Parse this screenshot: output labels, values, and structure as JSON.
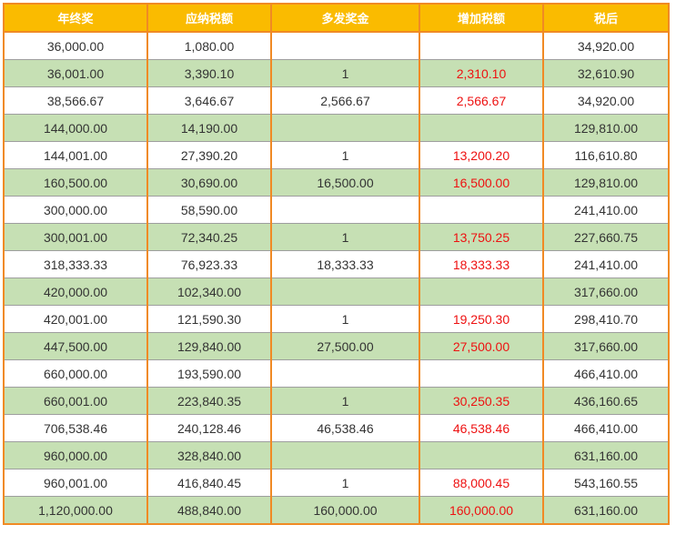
{
  "table": {
    "headers": [
      "年终奖",
      "应纳税额",
      "多发奖金",
      "增加税额",
      "税后"
    ],
    "rows": [
      [
        "36,000.00",
        "1,080.00",
        "",
        "",
        "34,920.00"
      ],
      [
        "36,001.00",
        "3,390.10",
        "1",
        "2,310.10",
        "32,610.90"
      ],
      [
        "38,566.67",
        "3,646.67",
        "2,566.67",
        "2,566.67",
        "34,920.00"
      ],
      [
        "144,000.00",
        "14,190.00",
        "",
        "",
        "129,810.00"
      ],
      [
        "144,001.00",
        "27,390.20",
        "1",
        "13,200.20",
        "116,610.80"
      ],
      [
        "160,500.00",
        "30,690.00",
        "16,500.00",
        "16,500.00",
        "129,810.00"
      ],
      [
        "300,000.00",
        "58,590.00",
        "",
        "",
        "241,410.00"
      ],
      [
        "300,001.00",
        "72,340.25",
        "1",
        "13,750.25",
        "227,660.75"
      ],
      [
        "318,333.33",
        "76,923.33",
        "18,333.33",
        "18,333.33",
        "241,410.00"
      ],
      [
        "420,000.00",
        "102,340.00",
        "",
        "",
        "317,660.00"
      ],
      [
        "420,001.00",
        "121,590.30",
        "1",
        "19,250.30",
        "298,410.70"
      ],
      [
        "447,500.00",
        "129,840.00",
        "27,500.00",
        "27,500.00",
        "317,660.00"
      ],
      [
        "660,000.00",
        "193,590.00",
        "",
        "",
        "466,410.00"
      ],
      [
        "660,001.00",
        "223,840.35",
        "1",
        "30,250.35",
        "436,160.65"
      ],
      [
        "706,538.46",
        "240,128.46",
        "46,538.46",
        "46,538.46",
        "466,410.00"
      ],
      [
        "960,000.00",
        "328,840.00",
        "",
        "",
        "631,160.00"
      ],
      [
        "960,001.00",
        "416,840.45",
        "1",
        "88,000.45",
        "543,160.55"
      ],
      [
        "1,120,000.00",
        "488,840.00",
        "160,000.00",
        "160,000.00",
        "631,160.00"
      ]
    ]
  },
  "colors": {
    "header_background": "#fabb00",
    "header_text": "#ffffff",
    "border": "#f08a24",
    "row_stripe": "#c6e0b4",
    "increase_text": "#ee1111"
  }
}
